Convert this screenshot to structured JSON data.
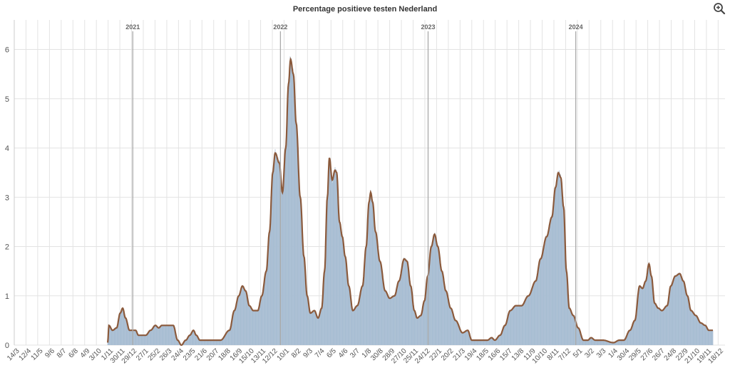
{
  "chart_data": {
    "type": "area",
    "title": "Percentage positieve testen Nederland",
    "xlabel": "",
    "ylabel": "",
    "ylim": [
      0,
      6.6
    ],
    "y_ticks": [
      "0",
      "1",
      "2",
      "3",
      "4",
      "5",
      "6"
    ],
    "x_domain": [
      "2020-03-14",
      "2025-01-04"
    ],
    "x_tick_labels": [
      "14/3",
      "12/4",
      "11/5",
      "9/6",
      "8/7",
      "6/8",
      "4/9",
      "3/10",
      "1/11",
      "30/11",
      "29/12",
      "27/1",
      "25/2",
      "26/3",
      "24/4",
      "23/5",
      "21/6",
      "20/7",
      "18/8",
      "16/9",
      "15/10",
      "13/11",
      "12/12",
      "10/1",
      "8/2",
      "9/3",
      "7/4",
      "6/5",
      "4/6",
      "3/7",
      "1/8",
      "30/8",
      "28/9",
      "27/10",
      "25/11",
      "24/12",
      "22/1",
      "20/2",
      "21/3",
      "19/4",
      "18/5",
      "16/6",
      "15/7",
      "13/8",
      "11/9",
      "10/10",
      "8/11",
      "7/12",
      "5/1",
      "3/2",
      "3/3",
      "1/4",
      "30/4",
      "29/5",
      "27/6",
      "26/7",
      "24/8",
      "22/9",
      "21/10",
      "19/11",
      "18/12"
    ],
    "year_markers": [
      {
        "label": "2021",
        "date": "2021-01-01"
      },
      {
        "label": "2022",
        "date": "2022-01-01"
      },
      {
        "label": "2023",
        "date": "2023-01-01"
      },
      {
        "label": "2024",
        "date": "2024-01-01"
      }
    ],
    "series": [
      {
        "color": "#a9bed3",
        "line_color": "#8b5a3c",
        "points": [
          [
            "2020-10-31",
            0.05
          ],
          [
            "2020-11-03",
            0.4
          ],
          [
            "2020-11-12",
            0.3
          ],
          [
            "2020-11-22",
            0.35
          ],
          [
            "2020-12-01",
            0.65
          ],
          [
            "2020-12-07",
            0.75
          ],
          [
            "2020-12-14",
            0.55
          ],
          [
            "2020-12-24",
            0.3
          ],
          [
            "2021-01-08",
            0.3
          ],
          [
            "2021-01-15",
            0.2
          ],
          [
            "2021-02-02",
            0.2
          ],
          [
            "2021-02-14",
            0.3
          ],
          [
            "2021-02-26",
            0.4
          ],
          [
            "2021-03-06",
            0.35
          ],
          [
            "2021-03-14",
            0.4
          ],
          [
            "2021-03-28",
            0.4
          ],
          [
            "2021-04-11",
            0.4
          ],
          [
            "2021-04-22",
            0.1
          ],
          [
            "2021-05-01",
            0.0
          ],
          [
            "2021-05-12",
            0.1
          ],
          [
            "2021-05-22",
            0.2
          ],
          [
            "2021-05-31",
            0.3
          ],
          [
            "2021-06-07",
            0.2
          ],
          [
            "2021-06-16",
            0.1
          ],
          [
            "2021-07-10",
            0.1
          ],
          [
            "2021-08-06",
            0.1
          ],
          [
            "2021-08-28",
            0.3
          ],
          [
            "2021-09-09",
            0.7
          ],
          [
            "2021-09-20",
            1.0
          ],
          [
            "2021-09-29",
            1.2
          ],
          [
            "2021-10-07",
            1.1
          ],
          [
            "2021-10-16",
            0.8
          ],
          [
            "2021-10-26",
            0.7
          ],
          [
            "2021-11-06",
            0.7
          ],
          [
            "2021-11-16",
            1.0
          ],
          [
            "2021-11-27",
            1.5
          ],
          [
            "2021-12-05",
            2.3
          ],
          [
            "2021-12-13",
            3.5
          ],
          [
            "2021-12-19",
            3.9
          ],
          [
            "2021-12-29",
            3.7
          ],
          [
            "2022-01-06",
            3.1
          ],
          [
            "2022-01-14",
            4.0
          ],
          [
            "2022-01-21",
            5.3
          ],
          [
            "2022-01-26",
            5.8
          ],
          [
            "2022-02-02",
            5.5
          ],
          [
            "2022-02-09",
            4.5
          ],
          [
            "2022-02-19",
            3.0
          ],
          [
            "2022-02-28",
            1.8
          ],
          [
            "2022-03-08",
            1.0
          ],
          [
            "2022-03-16",
            0.65
          ],
          [
            "2022-03-26",
            0.7
          ],
          [
            "2022-04-04",
            0.55
          ],
          [
            "2022-04-13",
            0.75
          ],
          [
            "2022-04-20",
            1.5
          ],
          [
            "2022-04-27",
            3.0
          ],
          [
            "2022-05-02",
            3.8
          ],
          [
            "2022-05-09",
            3.35
          ],
          [
            "2022-05-16",
            3.55
          ],
          [
            "2022-05-20",
            3.5
          ],
          [
            "2022-05-27",
            2.5
          ],
          [
            "2022-06-03",
            2.2
          ],
          [
            "2022-06-10",
            1.8
          ],
          [
            "2022-06-19",
            1.2
          ],
          [
            "2022-06-29",
            0.7
          ],
          [
            "2022-07-10",
            0.8
          ],
          [
            "2022-07-23",
            1.2
          ],
          [
            "2022-08-01",
            2.0
          ],
          [
            "2022-08-08",
            2.9
          ],
          [
            "2022-08-12",
            3.1
          ],
          [
            "2022-08-17",
            2.9
          ],
          [
            "2022-08-24",
            2.3
          ],
          [
            "2022-09-04",
            1.7
          ],
          [
            "2022-09-17",
            1.1
          ],
          [
            "2022-09-28",
            0.95
          ],
          [
            "2022-10-10",
            1.0
          ],
          [
            "2022-10-21",
            1.3
          ],
          [
            "2022-11-03",
            1.75
          ],
          [
            "2022-11-10",
            1.7
          ],
          [
            "2022-11-19",
            1.2
          ],
          [
            "2022-11-28",
            0.7
          ],
          [
            "2022-12-05",
            0.55
          ],
          [
            "2022-12-14",
            0.6
          ],
          [
            "2022-12-23",
            0.9
          ],
          [
            "2022-12-31",
            1.4
          ],
          [
            "2023-01-09",
            2.0
          ],
          [
            "2023-01-17",
            2.25
          ],
          [
            "2023-01-25",
            2.0
          ],
          [
            "2023-02-04",
            1.5
          ],
          [
            "2023-02-14",
            1.1
          ],
          [
            "2023-02-26",
            0.75
          ],
          [
            "2023-03-10",
            0.5
          ],
          [
            "2023-03-27",
            0.25
          ],
          [
            "2023-04-09",
            0.3
          ],
          [
            "2023-04-19",
            0.1
          ],
          [
            "2023-05-10",
            0.1
          ],
          [
            "2023-05-28",
            0.1
          ],
          [
            "2023-06-07",
            0.15
          ],
          [
            "2023-06-15",
            0.1
          ],
          [
            "2023-06-28",
            0.2
          ],
          [
            "2023-07-10",
            0.4
          ],
          [
            "2023-07-23",
            0.7
          ],
          [
            "2023-08-06",
            0.8
          ],
          [
            "2023-08-20",
            0.8
          ],
          [
            "2023-09-06",
            1.0
          ],
          [
            "2023-09-24",
            1.3
          ],
          [
            "2023-10-06",
            1.75
          ],
          [
            "2023-10-21",
            2.2
          ],
          [
            "2023-11-03",
            2.6
          ],
          [
            "2023-11-12",
            3.2
          ],
          [
            "2023-11-19",
            3.5
          ],
          [
            "2023-11-25",
            3.4
          ],
          [
            "2023-12-02",
            2.8
          ],
          [
            "2023-12-09",
            1.5
          ],
          [
            "2023-12-16",
            0.75
          ],
          [
            "2023-12-26",
            0.6
          ],
          [
            "2024-01-07",
            0.35
          ],
          [
            "2024-01-20",
            0.1
          ],
          [
            "2024-01-31",
            0.1
          ],
          [
            "2024-02-08",
            0.15
          ],
          [
            "2024-02-18",
            0.1
          ],
          [
            "2024-03-08",
            0.1
          ],
          [
            "2024-04-03",
            0.05
          ],
          [
            "2024-04-18",
            0.1
          ],
          [
            "2024-04-29",
            0.1
          ],
          [
            "2024-05-14",
            0.3
          ],
          [
            "2024-05-26",
            0.5
          ],
          [
            "2024-06-07",
            1.2
          ],
          [
            "2024-06-14",
            1.15
          ],
          [
            "2024-06-22",
            1.3
          ],
          [
            "2024-06-30",
            1.65
          ],
          [
            "2024-07-06",
            1.4
          ],
          [
            "2024-07-14",
            0.85
          ],
          [
            "2024-07-23",
            0.75
          ],
          [
            "2024-08-01",
            0.7
          ],
          [
            "2024-08-14",
            0.8
          ],
          [
            "2024-08-23",
            1.2
          ],
          [
            "2024-09-03",
            1.4
          ],
          [
            "2024-09-14",
            1.45
          ],
          [
            "2024-09-23",
            1.3
          ],
          [
            "2024-10-03",
            1.0
          ],
          [
            "2024-10-12",
            0.7
          ],
          [
            "2024-10-24",
            0.6
          ],
          [
            "2024-11-05",
            0.45
          ],
          [
            "2024-11-16",
            0.4
          ],
          [
            "2024-11-25",
            0.3
          ],
          [
            "2024-12-05",
            0.3
          ]
        ]
      }
    ],
    "grid": true,
    "legend": "none"
  },
  "ui": {
    "zoom_icon": "zoom-in-icon"
  }
}
